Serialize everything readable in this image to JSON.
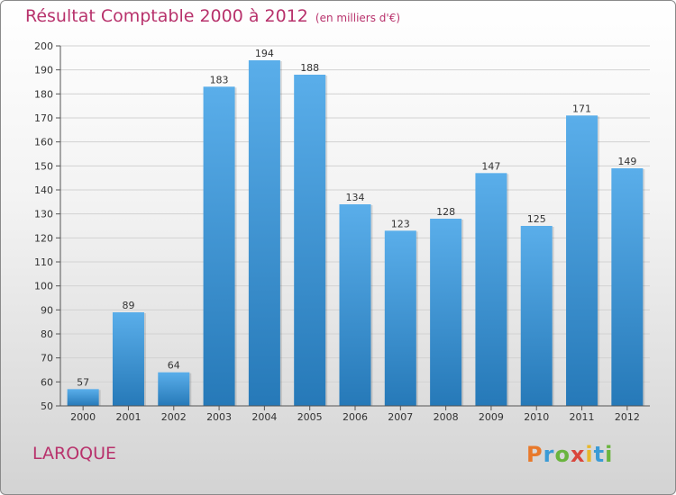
{
  "title": "Résultat Comptable 2000 à 2012",
  "subtitle": "(en milliers d'€)",
  "commune": "LAROQUE",
  "logo": {
    "text": "Proxiti",
    "letter_colors": [
      "#e8792b",
      "#3b9bd6",
      "#6ab43e",
      "#d9463c",
      "#e8b82b",
      "#3b9bd6",
      "#6ab43e"
    ]
  },
  "colors": {
    "title": "#b8326c",
    "bar_top": "#5aaeea",
    "bar_bottom": "#2679b8"
  },
  "chart_data": {
    "type": "bar",
    "categories": [
      "2000",
      "2001",
      "2002",
      "2003",
      "2004",
      "2005",
      "2006",
      "2007",
      "2008",
      "2009",
      "2010",
      "2011",
      "2012"
    ],
    "values": [
      57,
      89,
      64,
      183,
      194,
      188,
      134,
      123,
      128,
      147,
      125,
      171,
      149
    ],
    "ylim": [
      50,
      200
    ],
    "yticks": [
      50,
      60,
      70,
      80,
      90,
      100,
      110,
      120,
      130,
      140,
      150,
      160,
      170,
      180,
      190,
      200
    ],
    "grid": true,
    "data_labels": true
  }
}
